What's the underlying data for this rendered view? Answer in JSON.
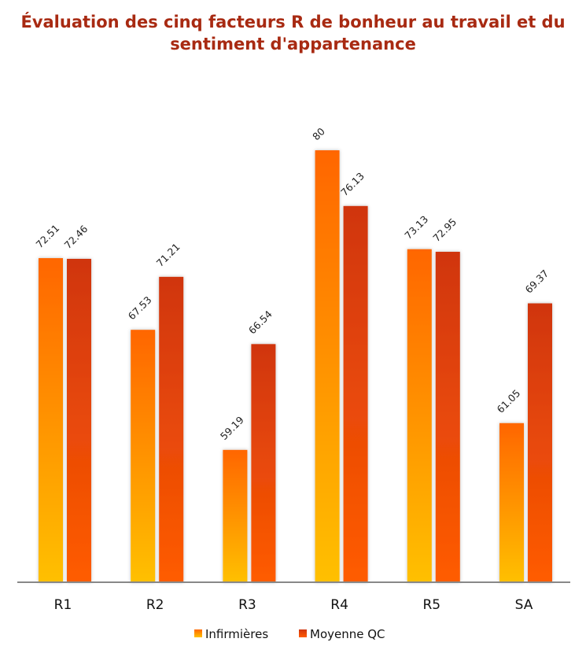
{
  "chart_data": {
    "type": "bar",
    "title": "Évaluation des cinq facteurs R de bonheur au travail et du sentiment d'appartenance",
    "categories": [
      "R1",
      "R2",
      "R3",
      "R4",
      "R5",
      "SA"
    ],
    "series": [
      {
        "name": "Infirmières",
        "values": [
          72.51,
          67.53,
          59.19,
          80,
          73.13,
          61.05
        ],
        "color_top": "#FF6600",
        "color_bottom": "#FFC000"
      },
      {
        "name": "Moyenne QC",
        "values": [
          72.46,
          71.21,
          66.54,
          76.13,
          72.95,
          69.37
        ],
        "color_top": "#D03510",
        "color_bottom": "#FF5C00"
      }
    ],
    "xlabel": "",
    "ylabel": "",
    "ylim": [
      50,
      80
    ],
    "grid": false,
    "legend": "bottom",
    "title_color": "#A82A12"
  }
}
